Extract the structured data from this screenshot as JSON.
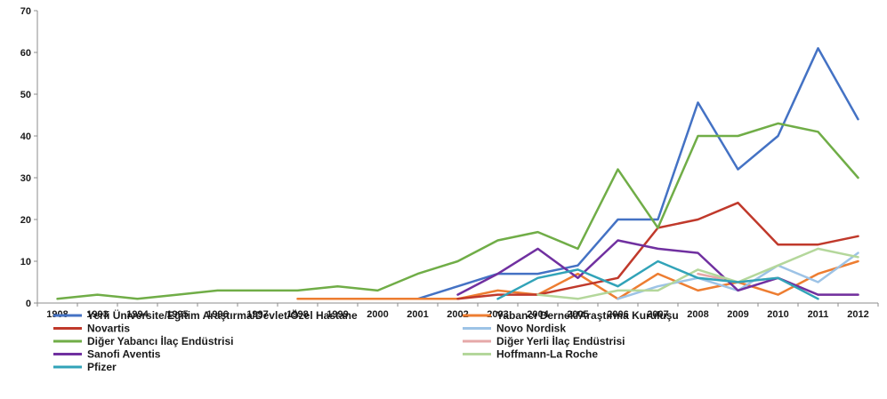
{
  "chart_data": {
    "type": "line",
    "title": "",
    "xlabel": "",
    "ylabel": "",
    "ylim": [
      0,
      70
    ],
    "yticks": [
      0,
      10,
      20,
      30,
      40,
      50,
      60,
      70
    ],
    "grid": false,
    "legend_position": "bottom",
    "categories": [
      "1908",
      "1993",
      "1994",
      "1995",
      "1996",
      "1997",
      "1998",
      "1999",
      "2000",
      "2001",
      "2002",
      "2003",
      "2004",
      "2005",
      "2006",
      "2007",
      "2008",
      "2009",
      "2010",
      "2011",
      "2012"
    ],
    "series": [
      {
        "name": "Yerli Üniversite/Eğitim Araştırma/Devlet/Özel Hastane",
        "color": "#4472c4",
        "values": [
          null,
          null,
          null,
          null,
          null,
          null,
          null,
          1,
          1,
          1,
          4,
          7,
          7,
          9,
          20,
          20,
          48,
          32,
          40,
          61,
          44
        ]
      },
      {
        "name": "Yabancı Dernek/Araştırma Kuruluşu",
        "color": "#ed7d31",
        "values": [
          null,
          null,
          null,
          null,
          null,
          null,
          1,
          1,
          1,
          1,
          1,
          3,
          2,
          7,
          1,
          7,
          3,
          5,
          2,
          7,
          10
        ]
      },
      {
        "name": "Novartis",
        "color": "#c0392b",
        "values": [
          null,
          null,
          null,
          null,
          null,
          null,
          null,
          null,
          null,
          null,
          1,
          2,
          2,
          4,
          6,
          18,
          20,
          24,
          14,
          14,
          16
        ]
      },
      {
        "name": "Novo Nordisk",
        "color": "#9dc3e6",
        "values": [
          null,
          null,
          null,
          null,
          null,
          null,
          null,
          null,
          null,
          null,
          null,
          null,
          null,
          null,
          1,
          4,
          6,
          3,
          9,
          5,
          12
        ]
      },
      {
        "name": "Diğer Yabancı İlaç Endüstrisi",
        "color": "#70ad47",
        "values": [
          1,
          2,
          1,
          2,
          3,
          3,
          3,
          4,
          3,
          7,
          10,
          15,
          17,
          13,
          32,
          18,
          40,
          40,
          43,
          41,
          30
        ]
      },
      {
        "name": "Diğer Yerli İlaç Endüstrisi",
        "color": "#e6a8a8",
        "values": [
          null,
          null,
          null,
          null,
          null,
          null,
          null,
          null,
          null,
          null,
          null,
          null,
          null,
          null,
          null,
          null,
          7,
          5,
          6,
          2,
          2
        ]
      },
      {
        "name": "Sanofi Aventis",
        "color": "#7030a0",
        "values": [
          null,
          null,
          null,
          null,
          null,
          null,
          null,
          null,
          null,
          null,
          2,
          7,
          13,
          6,
          15,
          13,
          12,
          3,
          6,
          2,
          2
        ]
      },
      {
        "name": "Hoffmann-La Roche",
        "color": "#b4d79b",
        "values": [
          null,
          null,
          null,
          null,
          null,
          null,
          null,
          null,
          null,
          null,
          null,
          null,
          2,
          1,
          3,
          3,
          8,
          5,
          9,
          13,
          11
        ]
      },
      {
        "name": "Pfizer",
        "color": "#31a3b8",
        "values": [
          null,
          null,
          null,
          null,
          null,
          null,
          null,
          null,
          null,
          null,
          null,
          1,
          6,
          8,
          4,
          10,
          6,
          5,
          6,
          1,
          null
        ]
      }
    ]
  }
}
